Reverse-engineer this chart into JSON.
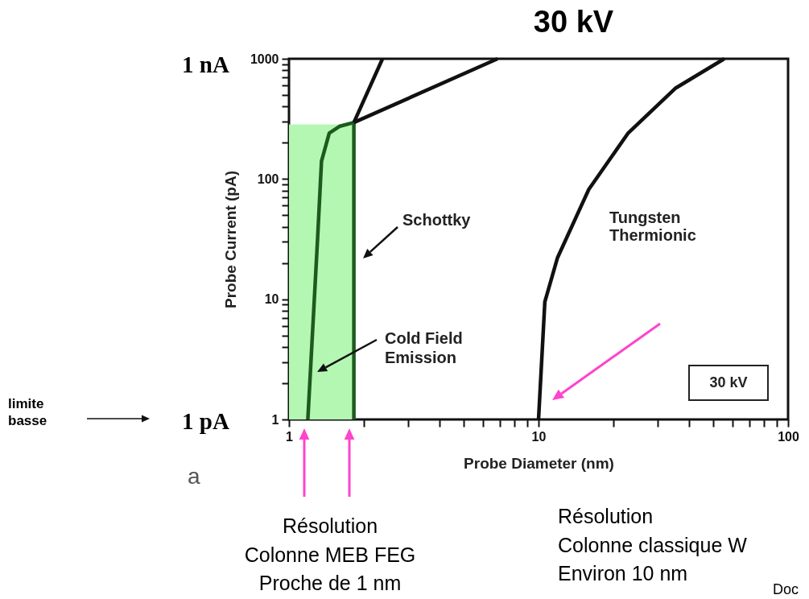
{
  "chart_data": {
    "type": "line",
    "title": "30 kV",
    "xlabel": "Probe Diameter (nm)",
    "ylabel": "Probe Current (pA)",
    "log": "xy",
    "xlim": [
      1,
      100
    ],
    "ylim": [
      1,
      1000
    ],
    "xticks": [
      1,
      {
        "value": 2,
        "label": null
      },
      {
        "value": 3,
        "label": null
      },
      {
        "value": 4,
        "label": null
      },
      {
        "value": 5,
        "label": null
      },
      {
        "value": 6,
        "label": null
      },
      {
        "value": 7,
        "label": null
      },
      {
        "value": 8,
        "label": null
      },
      {
        "value": 9,
        "label": null
      },
      10,
      {
        "value": 20,
        "label": null
      },
      {
        "value": 30,
        "label": null
      },
      {
        "value": 40,
        "label": null
      },
      {
        "value": 50,
        "label": null
      },
      {
        "value": 60,
        "label": null
      },
      {
        "value": 70,
        "label": null
      },
      {
        "value": 80,
        "label": null
      },
      {
        "value": 90,
        "label": null
      },
      100
    ],
    "yticks": [
      1,
      {
        "value": 2,
        "label": null
      },
      {
        "value": 3,
        "label": null
      },
      {
        "value": 4,
        "label": null
      },
      {
        "value": 5,
        "label": null
      },
      {
        "value": 6,
        "label": null
      },
      {
        "value": 7,
        "label": null
      },
      {
        "value": 8,
        "label": null
      },
      {
        "value": 9,
        "label": null
      },
      10,
      {
        "value": 20,
        "label": null
      },
      {
        "value": 30,
        "label": null
      },
      {
        "value": 40,
        "label": null
      },
      {
        "value": 50,
        "label": null
      },
      {
        "value": 60,
        "label": null
      },
      {
        "value": 70,
        "label": null
      },
      {
        "value": 80,
        "label": null
      },
      {
        "value": 90,
        "label": null
      },
      100,
      {
        "value": 200,
        "label": null
      },
      {
        "value": 300,
        "label": null
      },
      {
        "value": 400,
        "label": null
      },
      {
        "value": 500,
        "label": null
      },
      {
        "value": 600,
        "label": null
      },
      {
        "value": 700,
        "label": null
      },
      {
        "value": 800,
        "label": null
      },
      {
        "value": 900,
        "label": null
      },
      1000
    ],
    "grid": false,
    "line_style": "solid",
    "marker": "none",
    "series": [
      {
        "type": "area",
        "color": "#b3f7b3",
        "x": [
          1,
          1.82
        ],
        "values": [
          285,
          285
        ]
      },
      {
        "color": "#1e5a1e",
        "x": [
          1.19,
          1.3,
          1.35,
          1.45,
          1.6,
          1.82
        ],
        "values": [
          1,
          30,
          141,
          241,
          275,
          295
        ]
      },
      {
        "color": "#1e5a1e",
        "x": [
          1.82,
          1.82
        ],
        "values": [
          1,
          295
        ]
      },
      {
        "color": "#111111",
        "x": [
          1.82,
          2.37
        ],
        "values": [
          295,
          1000
        ]
      },
      {
        "color": "#111111",
        "x": [
          1.82,
          6.85
        ],
        "values": [
          295,
          1000
        ]
      },
      {
        "color": "#111111",
        "x": [
          10,
          10.6,
          11.9,
          15.9,
          22.9,
          35.3,
          55.5
        ],
        "values": [
          1,
          9.5,
          22,
          82,
          242,
          567,
          1000
        ]
      }
    ],
    "annotations": [
      "1 nA",
      "1 pA",
      "limite\nbasse",
      "a",
      "Schottky",
      "Cold Field\nEmission",
      "Tungsten\nThermionic",
      "30 kV",
      "Résolution\nColonne MEB FEG\nProche de 1 nm",
      "Résolution\nColonne classique W\nEnviron 10 nm",
      "Doc"
    ]
  }
}
